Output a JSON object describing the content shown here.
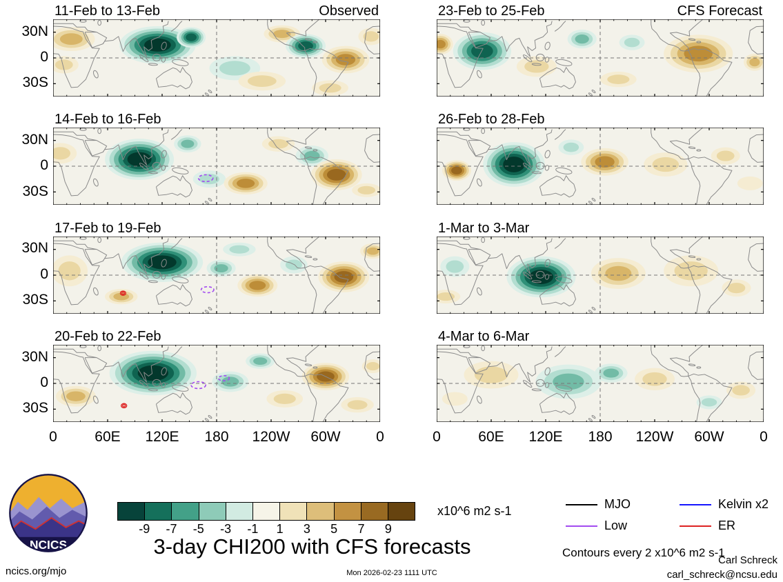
{
  "footer": {
    "logo_text": "NCICS",
    "site": "ncics.org/mjo",
    "timestamp": "Mon 2026-02-23 1111 UTC",
    "title": "3-day CHI200 with CFS forecasts",
    "contour_note": "Contours every 2 x10^6 m2 s-1",
    "author": "Carl Schreck",
    "email": "carl_schreck@ncsu.edu",
    "units": "x10^6 m2 s-1"
  },
  "chart_data": {
    "type": "heatmap",
    "title": "3-day CHI200 with CFS forecasts",
    "units": "x10^6 m2 s-1",
    "contour_interval": "Contours every 2 x10^6 m2 s-1",
    "columns": [
      "Observed",
      "CFS Forecast"
    ],
    "x_tick_labels": [
      "0",
      "60E",
      "120E",
      "180",
      "120W",
      "60W",
      "0"
    ],
    "y_tick_labels": [
      "30N",
      "0",
      "30S"
    ],
    "lon_range": [
      0,
      360
    ],
    "lat_range": [
      45,
      -45
    ],
    "colorbar": {
      "tick_labels": [
        "-9",
        "-7",
        "-5",
        "-3",
        "-1",
        "1",
        "3",
        "5",
        "7",
        "9"
      ],
      "colors": [
        "#07433a",
        "#15705b",
        "#43a188",
        "#8ecbb8",
        "#d2ebe2",
        "#f6f4e8",
        "#f0e2b8",
        "#ddbe7a",
        "#c39242",
        "#996a22",
        "#66430f"
      ]
    },
    "legend": [
      {
        "label": "MJO",
        "color": "#000000"
      },
      {
        "label": "Kelvin x2",
        "color": "#1414ff"
      },
      {
        "label": "Low",
        "color": "#a24bf0"
      },
      {
        "label": "ER",
        "color": "#dd2222"
      }
    ],
    "panels": [
      {
        "title": "11-Feb to 13-Feb",
        "annotation": "Observed",
        "anomalies": [
          {
            "lon": 20,
            "lat": 22,
            "rx": 26,
            "ry": 14,
            "value": 5
          },
          {
            "lon": 12,
            "lat": -8,
            "rx": 16,
            "ry": 10,
            "value": 3
          },
          {
            "lon": 115,
            "lat": 15,
            "rx": 42,
            "ry": 22,
            "value": -11
          },
          {
            "lon": 152,
            "lat": 24,
            "rx": 16,
            "ry": 12,
            "value": -9
          },
          {
            "lon": 200,
            "lat": -12,
            "rx": 28,
            "ry": 14,
            "value": -3
          },
          {
            "lon": 230,
            "lat": -27,
            "rx": 26,
            "ry": 11,
            "value": 3
          },
          {
            "lon": 252,
            "lat": 28,
            "rx": 20,
            "ry": 10,
            "value": 5
          },
          {
            "lon": 278,
            "lat": 14,
            "rx": 22,
            "ry": 14,
            "value": -9
          },
          {
            "lon": 322,
            "lat": -2,
            "rx": 26,
            "ry": 16,
            "value": 7
          },
          {
            "lon": 350,
            "lat": 25,
            "rx": 14,
            "ry": 10,
            "value": 3
          },
          {
            "lon": 305,
            "lat": -35,
            "rx": 20,
            "ry": 9,
            "value": 3
          }
        ],
        "low_contours": [],
        "er_contours": []
      },
      {
        "title": "14-Feb to 16-Feb",
        "annotation": "",
        "anomalies": [
          {
            "lon": 8,
            "lat": 15,
            "rx": 18,
            "ry": 12,
            "value": 3
          },
          {
            "lon": 95,
            "lat": 8,
            "rx": 38,
            "ry": 24,
            "value": -11
          },
          {
            "lon": 148,
            "lat": 26,
            "rx": 15,
            "ry": 10,
            "value": -5
          },
          {
            "lon": 172,
            "lat": -15,
            "rx": 18,
            "ry": 10,
            "value": -3
          },
          {
            "lon": 212,
            "lat": -20,
            "rx": 24,
            "ry": 13,
            "value": 7
          },
          {
            "lon": 248,
            "lat": 26,
            "rx": 18,
            "ry": 9,
            "value": 3
          },
          {
            "lon": 285,
            "lat": 12,
            "rx": 18,
            "ry": 12,
            "value": -5
          },
          {
            "lon": 312,
            "lat": -10,
            "rx": 28,
            "ry": 18,
            "value": 9
          },
          {
            "lon": 345,
            "lat": -28,
            "rx": 16,
            "ry": 8,
            "value": 3
          }
        ],
        "low_contours": [
          {
            "lon": 168,
            "lat": -14,
            "rx": 8,
            "ry": 4
          }
        ],
        "er_contours": []
      },
      {
        "title": "17-Feb to 19-Feb",
        "annotation": "",
        "anomalies": [
          {
            "lon": 18,
            "lat": 5,
            "rx": 20,
            "ry": 18,
            "value": 3
          },
          {
            "lon": 75,
            "lat": -25,
            "rx": 18,
            "ry": 9,
            "value": 5
          },
          {
            "lon": 120,
            "lat": 15,
            "rx": 45,
            "ry": 23,
            "value": -11
          },
          {
            "lon": 185,
            "lat": 8,
            "rx": 16,
            "ry": 10,
            "value": -5
          },
          {
            "lon": 205,
            "lat": 30,
            "rx": 18,
            "ry": 8,
            "value": -3
          },
          {
            "lon": 225,
            "lat": -12,
            "rx": 22,
            "ry": 13,
            "value": 7
          },
          {
            "lon": 265,
            "lat": 12,
            "rx": 15,
            "ry": 10,
            "value": -3
          },
          {
            "lon": 320,
            "lat": -2,
            "rx": 28,
            "ry": 18,
            "value": 9
          },
          {
            "lon": 352,
            "lat": 28,
            "rx": 14,
            "ry": 9,
            "value": 5
          }
        ],
        "low_contours": [
          {
            "lon": 170,
            "lat": -17,
            "rx": 7,
            "ry": 3.5
          }
        ],
        "er_contours": [
          {
            "lon": 77,
            "lat": -21,
            "rx": 3,
            "ry": 2.5
          }
        ]
      },
      {
        "title": "20-Feb to 22-Feb",
        "annotation": "",
        "anomalies": [
          {
            "lon": 25,
            "lat": -15,
            "rx": 22,
            "ry": 12,
            "value": 5
          },
          {
            "lon": 110,
            "lat": 12,
            "rx": 48,
            "ry": 26,
            "value": -11
          },
          {
            "lon": 195,
            "lat": 2,
            "rx": 20,
            "ry": 12,
            "value": -5
          },
          {
            "lon": 228,
            "lat": 26,
            "rx": 16,
            "ry": 9,
            "value": -5
          },
          {
            "lon": 255,
            "lat": -18,
            "rx": 20,
            "ry": 10,
            "value": 3
          },
          {
            "lon": 300,
            "lat": 8,
            "rx": 26,
            "ry": 16,
            "value": 9
          },
          {
            "lon": 335,
            "lat": -25,
            "rx": 18,
            "ry": 9,
            "value": 3
          },
          {
            "lon": 352,
            "lat": 20,
            "rx": 12,
            "ry": 8,
            "value": 3
          }
        ],
        "low_contours": [
          {
            "lon": 160,
            "lat": -2,
            "rx": 8,
            "ry": 4
          },
          {
            "lon": 188,
            "lat": 6,
            "rx": 6,
            "ry": 3
          }
        ],
        "er_contours": [
          {
            "lon": 78,
            "lat": -26,
            "rx": 3,
            "ry": 2.5
          }
        ]
      },
      {
        "title": "23-Feb to 25-Feb",
        "annotation": "CFS Forecast",
        "anomalies": [
          {
            "lon": 4,
            "lat": 16,
            "rx": 14,
            "ry": 12,
            "value": 7
          },
          {
            "lon": 50,
            "lat": 8,
            "rx": 32,
            "ry": 22,
            "value": -9
          },
          {
            "lon": 110,
            "lat": -10,
            "rx": 22,
            "ry": 12,
            "value": 3
          },
          {
            "lon": 160,
            "lat": 22,
            "rx": 16,
            "ry": 11,
            "value": -5
          },
          {
            "lon": 215,
            "lat": 18,
            "rx": 14,
            "ry": 9,
            "value": -3
          },
          {
            "lon": 200,
            "lat": -25,
            "rx": 20,
            "ry": 9,
            "value": 3
          },
          {
            "lon": 288,
            "lat": 5,
            "rx": 38,
            "ry": 22,
            "value": 7
          },
          {
            "lon": 350,
            "lat": -5,
            "rx": 12,
            "ry": 10,
            "value": 5
          }
        ],
        "low_contours": [],
        "er_contours": []
      },
      {
        "title": "26-Feb to 28-Feb",
        "annotation": "",
        "anomalies": [
          {
            "lon": 22,
            "lat": -5,
            "rx": 16,
            "ry": 12,
            "value": 9
          },
          {
            "lon": 85,
            "lat": 2,
            "rx": 34,
            "ry": 26,
            "value": -11
          },
          {
            "lon": 148,
            "lat": 22,
            "rx": 14,
            "ry": 9,
            "value": -3
          },
          {
            "lon": 185,
            "lat": 5,
            "rx": 26,
            "ry": 16,
            "value": 7
          },
          {
            "lon": 252,
            "lat": 2,
            "rx": 24,
            "ry": 14,
            "value": 3
          },
          {
            "lon": 318,
            "lat": 12,
            "rx": 16,
            "ry": 10,
            "value": 3
          },
          {
            "lon": 345,
            "lat": -20,
            "rx": 14,
            "ry": 8,
            "value": 1
          }
        ],
        "low_contours": [],
        "er_contours": []
      },
      {
        "title": "1-Mar to 3-Mar",
        "annotation": "",
        "anomalies": [
          {
            "lon": 20,
            "lat": 10,
            "rx": 16,
            "ry": 12,
            "value": -3
          },
          {
            "lon": 10,
            "lat": -25,
            "rx": 16,
            "ry": 8,
            "value": 3
          },
          {
            "lon": 115,
            "lat": -2,
            "rx": 38,
            "ry": 24,
            "value": -11
          },
          {
            "lon": 200,
            "lat": 2,
            "rx": 30,
            "ry": 18,
            "value": 5
          },
          {
            "lon": 280,
            "lat": 5,
            "rx": 30,
            "ry": 18,
            "value": 3
          },
          {
            "lon": 330,
            "lat": -15,
            "rx": 16,
            "ry": 10,
            "value": 3
          }
        ],
        "low_contours": [],
        "er_contours": []
      },
      {
        "title": "4-Mar to 6-Mar",
        "annotation": "",
        "anomalies": [
          {
            "lon": 60,
            "lat": 10,
            "rx": 30,
            "ry": 16,
            "value": 3
          },
          {
            "lon": 20,
            "lat": -18,
            "rx": 14,
            "ry": 8,
            "value": 1
          },
          {
            "lon": 145,
            "lat": 2,
            "rx": 36,
            "ry": 20,
            "value": -5
          },
          {
            "lon": 192,
            "lat": 12,
            "rx": 18,
            "ry": 11,
            "value": -5
          },
          {
            "lon": 240,
            "lat": 5,
            "rx": 22,
            "ry": 13,
            "value": 3
          },
          {
            "lon": 300,
            "lat": -22,
            "rx": 14,
            "ry": 8,
            "value": -3
          },
          {
            "lon": 335,
            "lat": -8,
            "rx": 16,
            "ry": 10,
            "value": 3
          }
        ],
        "low_contours": [],
        "er_contours": []
      }
    ]
  }
}
